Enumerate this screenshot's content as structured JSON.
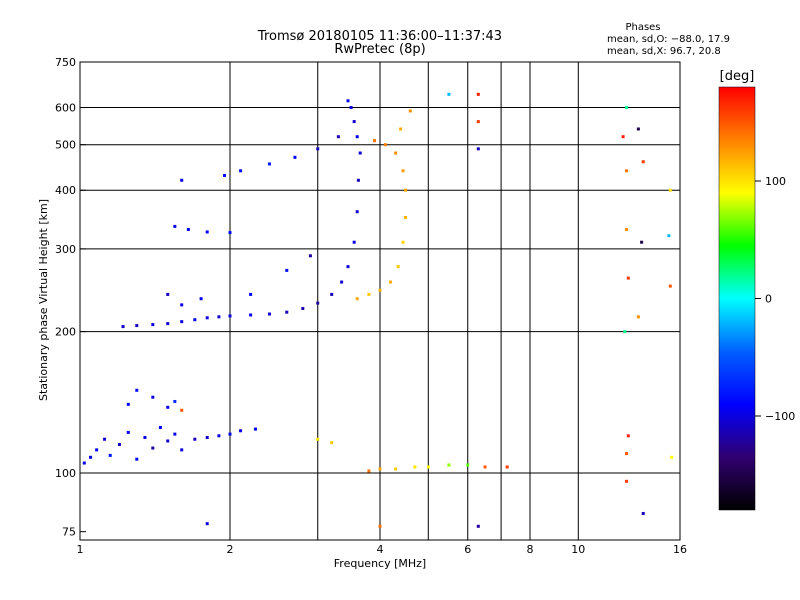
{
  "chart_data": {
    "type": "scatter",
    "title": "Tromsø 20180105 11:36:00–11:37:43",
    "subtitle": "RwPretec (8p)",
    "xlabel": "Frequency [MHz]",
    "ylabel": "Stationary phase Virtual Height [km]",
    "x_scale": "log",
    "y_scale": "log",
    "xlim": [
      1,
      16
    ],
    "ylim": [
      72,
      750
    ],
    "x_ticks": [
      1,
      2,
      4,
      6,
      8,
      10,
      16
    ],
    "x_tick_labels": [
      "1",
      "2",
      "4",
      "6",
      "8",
      "10",
      "16"
    ],
    "y_ticks": [
      75,
      100,
      200,
      300,
      400,
      500,
      600,
      750
    ],
    "y_tick_labels": [
      "75",
      "100",
      "200",
      "300",
      "400",
      "500",
      "600",
      "750"
    ],
    "x_grid": [
      1,
      2,
      3,
      4,
      5,
      6,
      7,
      8,
      10,
      16
    ],
    "y_grid": [
      100,
      200,
      300,
      400,
      500,
      600
    ],
    "grid": true,
    "info": {
      "heading": "Phases",
      "line_o": "mean, sd,O: −88.0, 17.9",
      "line_x": "mean, sd,X: 96.7, 20.8"
    },
    "colorbar": {
      "label": "[deg]",
      "range": [
        -180,
        180
      ],
      "ticks": [
        100,
        0,
        -100
      ],
      "tick_labels": [
        "100",
        "0",
        "−100"
      ],
      "colors": [
        "#ff0000",
        "#ff8000",
        "#ffff00",
        "#00ff00",
        "#00ffff",
        "#0060ff",
        "#0000ff",
        "#300070",
        "#000000"
      ]
    },
    "series": [
      {
        "x": 1.02,
        "y": 105,
        "phase": -95
      },
      {
        "x": 1.05,
        "y": 108,
        "phase": -100
      },
      {
        "x": 1.08,
        "y": 112,
        "phase": -90
      },
      {
        "x": 1.12,
        "y": 118,
        "phase": -105
      },
      {
        "x": 1.15,
        "y": 109,
        "phase": -80
      },
      {
        "x": 1.2,
        "y": 115,
        "phase": -110
      },
      {
        "x": 1.25,
        "y": 122,
        "phase": -95
      },
      {
        "x": 1.3,
        "y": 107,
        "phase": -85
      },
      {
        "x": 1.35,
        "y": 119,
        "phase": -100
      },
      {
        "x": 1.4,
        "y": 113,
        "phase": -120
      },
      {
        "x": 1.45,
        "y": 125,
        "phase": -90
      },
      {
        "x": 1.5,
        "y": 117,
        "phase": -105
      },
      {
        "x": 1.55,
        "y": 121,
        "phase": -95
      },
      {
        "x": 1.6,
        "y": 112,
        "phase": -100
      },
      {
        "x": 1.7,
        "y": 118,
        "phase": -110
      },
      {
        "x": 1.8,
        "y": 119,
        "phase": -105
      },
      {
        "x": 1.9,
        "y": 120,
        "phase": -100
      },
      {
        "x": 2.0,
        "y": 121,
        "phase": -95
      },
      {
        "x": 2.1,
        "y": 123,
        "phase": -100
      },
      {
        "x": 2.25,
        "y": 124,
        "phase": -95
      },
      {
        "x": 1.25,
        "y": 140,
        "phase": -90
      },
      {
        "x": 1.3,
        "y": 150,
        "phase": -85
      },
      {
        "x": 1.4,
        "y": 145,
        "phase": -100
      },
      {
        "x": 1.5,
        "y": 138,
        "phase": -95
      },
      {
        "x": 1.55,
        "y": 142,
        "phase": -70
      },
      {
        "x": 1.6,
        "y": 136,
        "phase": 150
      },
      {
        "x": 1.22,
        "y": 205,
        "phase": -105
      },
      {
        "x": 1.3,
        "y": 206,
        "phase": -110
      },
      {
        "x": 1.4,
        "y": 207,
        "phase": -100
      },
      {
        "x": 1.5,
        "y": 208,
        "phase": -105
      },
      {
        "x": 1.6,
        "y": 210,
        "phase": -100
      },
      {
        "x": 1.7,
        "y": 212,
        "phase": -95
      },
      {
        "x": 1.8,
        "y": 214,
        "phase": -100
      },
      {
        "x": 1.9,
        "y": 215,
        "phase": -105
      },
      {
        "x": 2.0,
        "y": 216,
        "phase": -100
      },
      {
        "x": 2.2,
        "y": 217,
        "phase": -95
      },
      {
        "x": 2.4,
        "y": 218,
        "phase": -105
      },
      {
        "x": 2.6,
        "y": 220,
        "phase": -110
      },
      {
        "x": 2.8,
        "y": 224,
        "phase": -115
      },
      {
        "x": 3.0,
        "y": 230,
        "phase": -120
      },
      {
        "x": 3.2,
        "y": 240,
        "phase": -110
      },
      {
        "x": 3.35,
        "y": 255,
        "phase": -105
      },
      {
        "x": 3.45,
        "y": 275,
        "phase": -100
      },
      {
        "x": 3.55,
        "y": 310,
        "phase": -100
      },
      {
        "x": 3.6,
        "y": 360,
        "phase": -105
      },
      {
        "x": 3.62,
        "y": 420,
        "phase": -110
      },
      {
        "x": 3.65,
        "y": 480,
        "phase": -100
      },
      {
        "x": 3.6,
        "y": 520,
        "phase": -95
      },
      {
        "x": 3.55,
        "y": 560,
        "phase": -105
      },
      {
        "x": 3.5,
        "y": 600,
        "phase": -100
      },
      {
        "x": 3.45,
        "y": 620,
        "phase": -95
      },
      {
        "x": 3.3,
        "y": 520,
        "phase": -115
      },
      {
        "x": 3.0,
        "y": 490,
        "phase": -110
      },
      {
        "x": 2.7,
        "y": 470,
        "phase": -90
      },
      {
        "x": 2.4,
        "y": 455,
        "phase": -80
      },
      {
        "x": 2.1,
        "y": 440,
        "phase": -85
      },
      {
        "x": 1.95,
        "y": 430,
        "phase": -90
      },
      {
        "x": 1.6,
        "y": 420,
        "phase": -95
      },
      {
        "x": 1.55,
        "y": 335,
        "phase": -100
      },
      {
        "x": 1.65,
        "y": 330,
        "phase": -95
      },
      {
        "x": 1.8,
        "y": 326,
        "phase": -90
      },
      {
        "x": 2.0,
        "y": 325,
        "phase": -85
      },
      {
        "x": 1.5,
        "y": 240,
        "phase": -110
      },
      {
        "x": 1.6,
        "y": 228,
        "phase": -100
      },
      {
        "x": 1.75,
        "y": 235,
        "phase": -95
      },
      {
        "x": 2.2,
        "y": 240,
        "phase": -90
      },
      {
        "x": 2.6,
        "y": 270,
        "phase": -85
      },
      {
        "x": 2.9,
        "y": 290,
        "phase": -120
      },
      {
        "x": 3.6,
        "y": 235,
        "phase": 120
      },
      {
        "x": 3.8,
        "y": 240,
        "phase": 110
      },
      {
        "x": 4.0,
        "y": 245,
        "phase": 115
      },
      {
        "x": 4.2,
        "y": 255,
        "phase": 120
      },
      {
        "x": 4.35,
        "y": 275,
        "phase": 110
      },
      {
        "x": 4.45,
        "y": 310,
        "phase": 105
      },
      {
        "x": 4.5,
        "y": 350,
        "phase": 115
      },
      {
        "x": 4.5,
        "y": 400,
        "phase": 120
      },
      {
        "x": 4.45,
        "y": 440,
        "phase": 125
      },
      {
        "x": 4.3,
        "y": 480,
        "phase": 130
      },
      {
        "x": 4.1,
        "y": 500,
        "phase": 135
      },
      {
        "x": 3.9,
        "y": 510,
        "phase": 140
      },
      {
        "x": 4.6,
        "y": 590,
        "phase": 130
      },
      {
        "x": 4.4,
        "y": 540,
        "phase": 120
      },
      {
        "x": 3.0,
        "y": 118,
        "phase": 100
      },
      {
        "x": 3.2,
        "y": 116,
        "phase": 110
      },
      {
        "x": 3.8,
        "y": 101,
        "phase": 140
      },
      {
        "x": 4.0,
        "y": 102,
        "phase": 120
      },
      {
        "x": 4.3,
        "y": 102,
        "phase": 110
      },
      {
        "x": 4.7,
        "y": 103,
        "phase": 100
      },
      {
        "x": 5.0,
        "y": 103,
        "phase": 90
      },
      {
        "x": 5.5,
        "y": 104,
        "phase": 70
      },
      {
        "x": 6.0,
        "y": 104,
        "phase": 60
      },
      {
        "x": 6.5,
        "y": 103,
        "phase": 150
      },
      {
        "x": 7.2,
        "y": 103,
        "phase": 160
      },
      {
        "x": 5.5,
        "y": 640,
        "phase": -20
      },
      {
        "x": 6.3,
        "y": 640,
        "phase": 170
      },
      {
        "x": 6.3,
        "y": 560,
        "phase": 160
      },
      {
        "x": 6.3,
        "y": 490,
        "phase": -110
      },
      {
        "x": 12.5,
        "y": 600,
        "phase": 20
      },
      {
        "x": 12.3,
        "y": 520,
        "phase": 170
      },
      {
        "x": 13.2,
        "y": 540,
        "phase": -150
      },
      {
        "x": 13.5,
        "y": 460,
        "phase": 160
      },
      {
        "x": 12.5,
        "y": 440,
        "phase": 140
      },
      {
        "x": 15.3,
        "y": 400,
        "phase": 100
      },
      {
        "x": 15.2,
        "y": 320,
        "phase": -20
      },
      {
        "x": 13.4,
        "y": 310,
        "phase": -150
      },
      {
        "x": 12.5,
        "y": 330,
        "phase": 130
      },
      {
        "x": 12.6,
        "y": 260,
        "phase": 160
      },
      {
        "x": 15.3,
        "y": 250,
        "phase": 150
      },
      {
        "x": 12.4,
        "y": 200,
        "phase": 20
      },
      {
        "x": 13.2,
        "y": 215,
        "phase": 130
      },
      {
        "x": 12.6,
        "y": 120,
        "phase": 170
      },
      {
        "x": 12.5,
        "y": 110,
        "phase": 150
      },
      {
        "x": 15.4,
        "y": 108,
        "phase": 90
      },
      {
        "x": 12.5,
        "y": 96,
        "phase": 160
      },
      {
        "x": 13.5,
        "y": 82,
        "phase": -110
      },
      {
        "x": 1.8,
        "y": 78,
        "phase": -100
      },
      {
        "x": 6.3,
        "y": 77,
        "phase": -120
      },
      {
        "x": 4.0,
        "y": 77,
        "phase": 140
      }
    ]
  }
}
